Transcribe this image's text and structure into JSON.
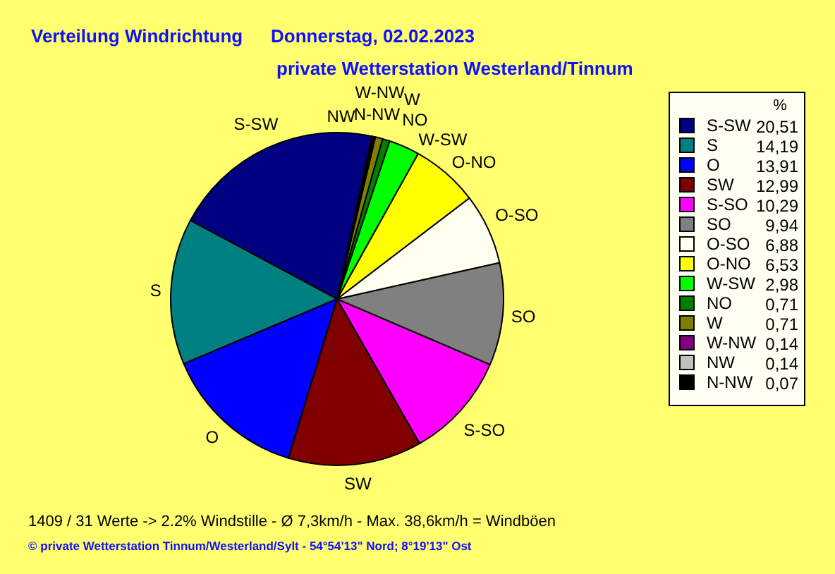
{
  "chart_data": {
    "type": "pie",
    "title": "Verteilung Windrichtung",
    "subtitle": "private Wetterstation Westerland/Tinnum",
    "annotations": [
      "Donnerstag, 02.02.2023",
      "1409 / 31 Werte -> 2.2% Windstille - Ø 7,3km/h - Max. 38,6km/h = Windböen",
      "© private Wetterstation Tinnum/Westerland/Sylt - 54°54'13\" Nord; 8°19'13\" Ost"
    ],
    "legend_title": "%",
    "legend": "right",
    "categories": [
      "S-SW",
      "S",
      "O",
      "SW",
      "S-SO",
      "SO",
      "O-SO",
      "O-NO",
      "W-SW",
      "NO",
      "W",
      "W-NW",
      "NW",
      "N-NW"
    ],
    "values": [
      20.51,
      14.19,
      13.91,
      12.99,
      10.29,
      9.94,
      6.88,
      6.53,
      2.98,
      0.71,
      0.71,
      0.14,
      0.14,
      0.07
    ],
    "value_labels": [
      "20,51",
      "14,19",
      "13,91",
      "12,99",
      "10,29",
      "9,94",
      "6,88",
      "6,53",
      "2,98",
      "0,71",
      "0,71",
      "0,14",
      "0,14",
      "0,07"
    ],
    "colors": [
      "#000080",
      "#008080",
      "#0000ff",
      "#800000",
      "#ff00ff",
      "#808080",
      "#fffff0",
      "#ffff00",
      "#00ff00",
      "#008000",
      "#808000",
      "#800080",
      "#c0c0c0",
      "#000000"
    ]
  }
}
